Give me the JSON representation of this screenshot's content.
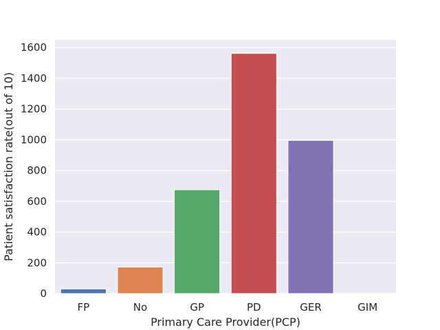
{
  "chart_data": {
    "type": "bar",
    "title": "",
    "xlabel": "Primary Care Provider(PCP)",
    "ylabel": "Patient satisfaction rate(out of 10)",
    "categories": [
      "FP",
      "No",
      "GP",
      "PD",
      "GER",
      "GIM"
    ],
    "values": [
      30,
      172,
      675,
      1562,
      996,
      0
    ],
    "ylim": [
      0,
      1650
    ],
    "yticks": [
      0,
      200,
      400,
      600,
      800,
      1000,
      1200,
      1400,
      1600
    ],
    "grid": true,
    "legend": "none",
    "colors": [
      "#4c72b0",
      "#dd8452",
      "#55a868",
      "#c44e52",
      "#8172b3",
      "#937860"
    ],
    "background": "#eaeaf2"
  }
}
